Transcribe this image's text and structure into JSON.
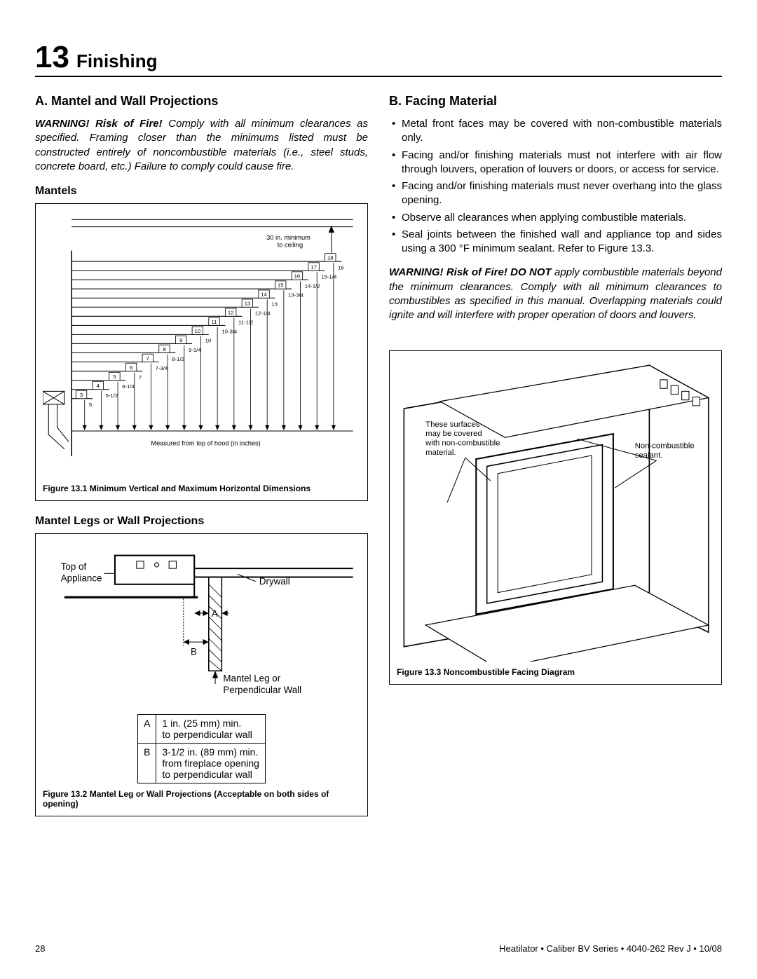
{
  "chapter": {
    "number": "13",
    "title": "Finishing"
  },
  "sectionA": {
    "title": "A. Mantel and Wall Projections",
    "warning_lead": "WARNING! Risk of Fire!",
    "warning_body": " Comply with all minimum clearances as specified. Framing closer than the minimums listed must be constructed entirely of noncombustible materials (i.e., steel studs, concrete board, etc.) Failure to comply could cause fire.",
    "mantels_head": "Mantels",
    "fig1": {
      "caption": "Figure 13.1   Minimum Vertical and Maximum Horizontal Dimensions",
      "note_top1": "30 in. minimum",
      "note_top2": "to ceiling",
      "note_bottom": "Measured from top of hood (in inches)",
      "h_labels": [
        "3",
        "4",
        "5",
        "6",
        "7",
        "8",
        "9",
        "10",
        "11",
        "12",
        "13",
        "14",
        "15",
        "16",
        "17",
        "18"
      ],
      "v_labels": [
        "5",
        "5-1/2",
        "6-1/4",
        "7",
        "7-3/4",
        "8-1/2",
        "9-1/4",
        "10",
        "10-3/4",
        "11-1/2",
        "12-1/4",
        "13",
        "13-3/4",
        "14-1/2",
        "15-1/4",
        "16"
      ],
      "colors": {
        "stroke": "#000000",
        "bg": "#ffffff"
      }
    },
    "mantel_legs_head": "Mantel Legs or Wall Projections",
    "fig2": {
      "caption": "Figure 13.2   Mantel Leg or Wall Projections (Acceptable on both sides of opening)",
      "label_top": "Top of\nAppliance",
      "label_drywall": "Drywall",
      "label_leg": "Mantel Leg or\nPerpendicular Wall",
      "dim_a": "A",
      "dim_b": "B",
      "table": [
        {
          "k": "A",
          "v": "1 in. (25 mm) min.\nto perpendicular wall"
        },
        {
          "k": "B",
          "v": "3-1/2 in. (89 mm) min.\nfrom fireplace opening\nto perpendicular wall"
        }
      ]
    }
  },
  "sectionB": {
    "title": "B. Facing Material",
    "bullets": [
      "Metal front faces may be covered with non-combustible materials only.",
      "Facing and/or finishing materials must not interfere with air flow through louvers, operation of louvers or doors, or access for service.",
      "Facing and/or finishing materials must never overhang into the glass opening.",
      "Observe all clearances when applying combustible materials.",
      "Seal joints between the finished wall and appliance top and sides using a 300 °F minimum sealant. Refer to Figure 13.3."
    ],
    "warning_lead": "WARNING! Risk of Fire! DO NOT",
    "warning_body": " apply combustible materials beyond the minimum clearances. Comply with all minimum clearances to combustibles as specified in this manual. Overlapping materials could ignite and will interfere with proper operation of doors and louvers.",
    "fig3": {
      "caption": "Figure 13.3   Noncombustible Facing Diagram",
      "label_surfaces": "These surfaces\nmay be covered\nwith non-combustible\nmaterial.",
      "label_sealant": "Non-combustible\nsealant."
    }
  },
  "footer": {
    "page": "28",
    "line": "Heatilator  •  Caliber BV Series  •  4040-262 Rev J  •  10/08"
  }
}
